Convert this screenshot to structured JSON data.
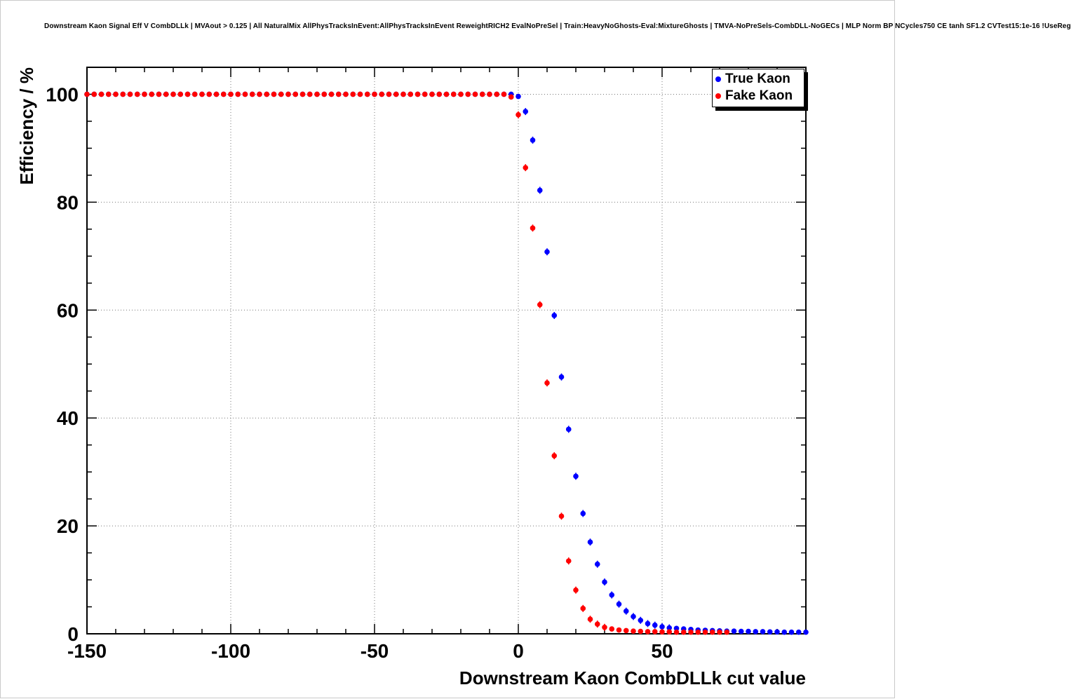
{
  "title": "Downstream Kaon Signal Eff V CombDLLk | MVAout > 0.125 | All NaturalMix AllPhysTracksInEvent:AllPhysTracksInEvent ReweightRICH2 EvalNoPreSel | Train:HeavyNoGhosts-Eval:MixtureGhosts | TMVA-NoPreSels-CombDLL-NoGECs | MLP Norm BP NCycles750 CE tanh SF1.2 CVTest15:1e-16 !UseReg",
  "chart_data": {
    "type": "scatter",
    "title": "Downstream Kaon Signal Eff V CombDLLk",
    "xlabel": "Downstream Kaon CombDLLk cut value",
    "ylabel": "Efficiency / %",
    "xlim": [
      -150,
      100
    ],
    "ylim": [
      0,
      105
    ],
    "xticks": [
      -150,
      -100,
      -50,
      0,
      50
    ],
    "yticks": [
      0,
      20,
      40,
      60,
      80,
      100
    ],
    "x_minor_step": 10,
    "y_minor_step": 5,
    "grid": "dotted",
    "legend_position": "top-right",
    "series": [
      {
        "name": "True Kaon",
        "color": "#0000ff",
        "marker": "circle",
        "x_start": -150,
        "x_step": 2.5,
        "x_end": 100,
        "y": [
          100,
          100,
          100,
          100,
          100,
          100,
          100,
          100,
          100,
          100,
          100,
          100,
          100,
          100,
          100,
          100,
          100,
          100,
          100,
          100,
          100,
          100,
          100,
          100,
          100,
          100,
          100,
          100,
          100,
          100,
          100,
          100,
          100,
          100,
          100,
          100,
          100,
          100,
          100,
          100,
          100,
          100,
          100,
          100,
          100,
          100,
          100,
          100,
          100,
          100,
          100,
          100,
          100,
          100,
          100,
          100,
          100,
          100,
          100,
          100,
          99.6,
          96.8,
          91.5,
          82.2,
          70.8,
          59.0,
          47.6,
          37.9,
          29.2,
          22.3,
          17.0,
          12.9,
          9.6,
          7.2,
          5.5,
          4.2,
          3.2,
          2.5,
          1.9,
          1.6,
          1.3,
          1.1,
          1.0,
          0.9,
          0.8,
          0.7,
          0.65,
          0.6,
          0.55,
          0.5,
          0.5,
          0.45,
          0.45,
          0.4,
          0.4,
          0.35,
          0.35,
          0.3,
          0.3,
          0.3,
          0.3
        ]
      },
      {
        "name": "Fake Kaon",
        "color": "#ff0000",
        "marker": "circle",
        "x_start": -150,
        "x_step": 2.5,
        "x_end": 72.5,
        "y": [
          100,
          100,
          100,
          100,
          100,
          100,
          100,
          100,
          100,
          100,
          100,
          100,
          100,
          100,
          100,
          100,
          100,
          100,
          100,
          100,
          100,
          100,
          100,
          100,
          100,
          100,
          100,
          100,
          100,
          100,
          100,
          100,
          100,
          100,
          100,
          100,
          100,
          100,
          100,
          100,
          100,
          100,
          100,
          100,
          100,
          100,
          100,
          100,
          100,
          100,
          100,
          100,
          100,
          100,
          100,
          100,
          100,
          100,
          100,
          99.5,
          96.2,
          86.4,
          75.2,
          61.0,
          46.5,
          33.0,
          21.8,
          13.5,
          8.1,
          4.7,
          2.7,
          1.8,
          1.2,
          0.9,
          0.7,
          0.6,
          0.5,
          0.45,
          0.4,
          0.4,
          0.35,
          0.35,
          0.3,
          0.3,
          0.3,
          0.3,
          0.3,
          0.3,
          0.3,
          0.3
        ]
      }
    ]
  }
}
